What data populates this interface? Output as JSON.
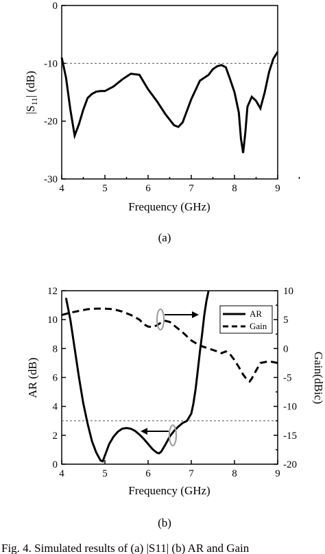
{
  "captions": {
    "a": "(a)",
    "b": "(b)"
  },
  "footer_text": "Fig. 4. Simulated results of (a) |S11| (b) AR and Gain",
  "chart_data": [
    {
      "type": "line",
      "xlabel": "Frequency (GHz)",
      "ylabel_main": "|S",
      "ylabel_sub": "11",
      "ylabel_end": "| (dB)",
      "xlim": [
        4,
        9
      ],
      "ylim": [
        -30,
        0
      ],
      "xticks": [
        "4",
        "5",
        "6",
        "7",
        "8",
        "9"
      ],
      "yticks": [
        "0",
        "-10",
        "-20",
        "-30"
      ],
      "reference_line": {
        "y": -10,
        "style": "dashed"
      },
      "series": [
        {
          "x": [
            4.0,
            4.1,
            4.2,
            4.3,
            4.4,
            4.5,
            4.6,
            4.7,
            4.8,
            4.9,
            5.0,
            5.2,
            5.4,
            5.6,
            5.8,
            6.0,
            6.2,
            6.4,
            6.6,
            6.7,
            6.8,
            7.0,
            7.2,
            7.4,
            7.5,
            7.6,
            7.7,
            7.8,
            7.9,
            8.0,
            8.1,
            8.15,
            8.2,
            8.25,
            8.3,
            8.4,
            8.5,
            8.6,
            8.7,
            8.8,
            8.9,
            9.0
          ],
          "y": [
            -9.0,
            -12.5,
            -18.0,
            -22.5,
            -20.5,
            -18.0,
            -16.0,
            -15.3,
            -14.9,
            -14.8,
            -14.8,
            -14.0,
            -12.8,
            -11.8,
            -12.0,
            -14.5,
            -16.5,
            -18.8,
            -20.7,
            -21.0,
            -20.2,
            -16.2,
            -13.0,
            -12.0,
            -11.0,
            -10.5,
            -10.3,
            -10.7,
            -12.8,
            -15.0,
            -18.5,
            -23.0,
            -25.5,
            -22.0,
            -17.5,
            -15.8,
            -16.5,
            -17.8,
            -15.0,
            -11.5,
            -9.2,
            -8.0
          ]
        }
      ]
    },
    {
      "type": "line",
      "xlabel": "Frequency (GHz)",
      "ylabel": "AR (dB)",
      "ylabel_right": "Gain(dBic)",
      "xlim": [
        4,
        9
      ],
      "ylim": [
        0,
        12
      ],
      "ylim_right": [
        -20,
        10
      ],
      "xticks": [
        "4",
        "5",
        "6",
        "7",
        "8",
        "9"
      ],
      "yticks": [
        "0",
        "2",
        "4",
        "6",
        "8",
        "10",
        "12"
      ],
      "yticks_right": [
        "-20",
        "-17.5",
        "-15",
        "-12.5",
        "-10",
        "-7.5",
        "-5",
        "-2.5",
        "0",
        "2.5",
        "5",
        "7.5",
        "10"
      ],
      "reference_line": {
        "y": 3,
        "style": "dashed"
      },
      "series": [
        {
          "name": "AR",
          "style": "solid",
          "axis": "left",
          "x": [
            4.1,
            4.2,
            4.3,
            4.4,
            4.5,
            4.6,
            4.7,
            4.8,
            4.9,
            4.95,
            5.0,
            5.1,
            5.2,
            5.3,
            5.4,
            5.5,
            5.6,
            5.7,
            5.8,
            5.9,
            6.0,
            6.1,
            6.2,
            6.25,
            6.3,
            6.4,
            6.5,
            6.6,
            6.7,
            6.8,
            6.9,
            7.0,
            7.05,
            7.1,
            7.15,
            7.2,
            7.25,
            7.3,
            7.35,
            7.4
          ],
          "y": [
            11.5,
            10.0,
            8.0,
            6.0,
            4.2,
            2.8,
            1.6,
            0.8,
            0.25,
            0.2,
            0.6,
            1.4,
            1.9,
            2.25,
            2.45,
            2.5,
            2.45,
            2.3,
            2.05,
            1.75,
            1.4,
            1.05,
            0.8,
            0.75,
            0.85,
            1.35,
            1.9,
            2.3,
            2.6,
            2.85,
            3.0,
            3.5,
            4.2,
            5.2,
            6.5,
            7.8,
            9.0,
            10.3,
            11.3,
            12.0
          ]
        },
        {
          "name": "Gain",
          "style": "dashed",
          "axis": "right",
          "x": [
            4.0,
            4.2,
            4.4,
            4.6,
            4.8,
            5.0,
            5.2,
            5.4,
            5.6,
            5.8,
            5.9,
            6.0,
            6.1,
            6.2,
            6.3,
            6.4,
            6.5,
            6.6,
            6.8,
            7.0,
            7.2,
            7.4,
            7.6,
            7.7,
            7.8,
            7.9,
            8.0,
            8.1,
            8.2,
            8.3,
            8.35,
            8.4,
            8.5,
            8.6,
            8.8,
            9.0
          ],
          "y": [
            5.8,
            6.2,
            6.5,
            6.8,
            6.9,
            6.9,
            6.8,
            6.4,
            5.8,
            5.0,
            4.2,
            3.8,
            3.7,
            4.0,
            4.5,
            4.8,
            4.6,
            4.0,
            2.8,
            1.4,
            0.5,
            0.0,
            -0.5,
            -0.8,
            -0.5,
            -1.0,
            -2.0,
            -3.2,
            -4.5,
            -5.5,
            -5.7,
            -5.2,
            -3.8,
            -2.5,
            -2.2,
            -2.5
          ]
        }
      ],
      "legend": {
        "position": "top-right",
        "entries": [
          "AR",
          "Gain"
        ]
      }
    }
  ]
}
